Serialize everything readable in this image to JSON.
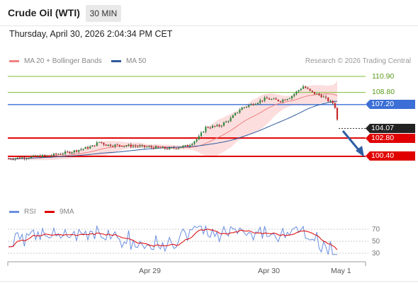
{
  "header": {
    "instrument": "Crude Oil (WTI)",
    "timeframe": "30 MIN",
    "timestamp": "Thursday, April 30, 2026 2:04:34 PM CET"
  },
  "legend": {
    "ma20_label": "MA 20 + Bollinger Bands",
    "ma50_label": "MA 50",
    "credit": "Research © 2026 Trading Central",
    "rsi_label": "RSI",
    "rsi_ma_label": "9MA"
  },
  "levels": {
    "resistance_2": "110.90",
    "resistance_1": "108.80",
    "pivot": "107.20",
    "last": "104.07",
    "support_1": "102.80",
    "support_2": "100.40"
  },
  "rsi_axis": {
    "t70": "70",
    "t50": "50",
    "t30": "30"
  },
  "x_axis": {
    "d1": "Apr 29",
    "d2": "Apr 30",
    "d3": "May 1"
  },
  "colors": {
    "resistance": "#7cbf3a",
    "pivot": "#3b6fd6",
    "support": "#e00000",
    "last_price_bg": "#222222",
    "ma20": "#f08080",
    "ma50": "#2f5a9e",
    "bollinger_fill": "#fbd6d6",
    "rsi": "#6a8fe0",
    "rsi_ma": "#e00000",
    "arrow": "#2e5fa3"
  }
}
